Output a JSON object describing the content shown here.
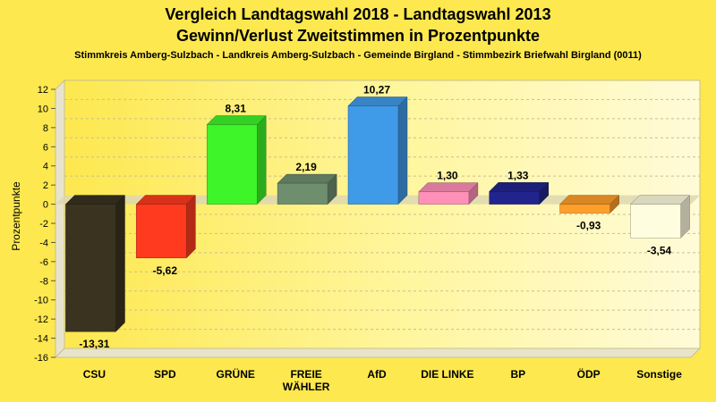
{
  "chart_data": {
    "type": "bar",
    "title_line1": "Vergleich Landtagswahl 2018 - Landtagswahl 2013",
    "title_line2": "Gewinn/Verlust Zweitstimmen in Prozentpunkte",
    "subtitle": "Stimmkreis Amberg-Sulzbach - Landkreis Amberg-Sulzbach - Gemeinde Birgland - Stimmbezirk Briefwahl Birgland (0011)",
    "ylabel": "Prozentpunkte",
    "xlabel": "",
    "ylim": [
      -16,
      12
    ],
    "yticks": [
      "12",
      "10",
      "8",
      "6",
      "4",
      "2",
      "0",
      "-2",
      "-4",
      "-6",
      "-8",
      "-10",
      "-12",
      "-14",
      "-16"
    ],
    "categories": [
      "CSU",
      "SPD",
      "GRÜNE",
      "FREIE|WÄHLER",
      "AfD",
      "DIE LINKE",
      "BP",
      "ÖDP",
      "Sonstige"
    ],
    "values": [
      -13.31,
      -5.62,
      8.31,
      2.19,
      10.27,
      1.3,
      1.33,
      -0.93,
      -3.54
    ],
    "value_labels": [
      "-13,31",
      "-5,62",
      "8,31",
      "2,19",
      "10,27",
      "1,30",
      "1,33",
      "-0,93",
      "-3,54"
    ],
    "colors": [
      "#3a3320",
      "#ff3a1e",
      "#3ef52a",
      "#6e8e6e",
      "#3f9ae8",
      "#ff90b8",
      "#22248e",
      "#ff9f2a",
      "#fffde0"
    ],
    "grid": true,
    "legend": "none"
  }
}
